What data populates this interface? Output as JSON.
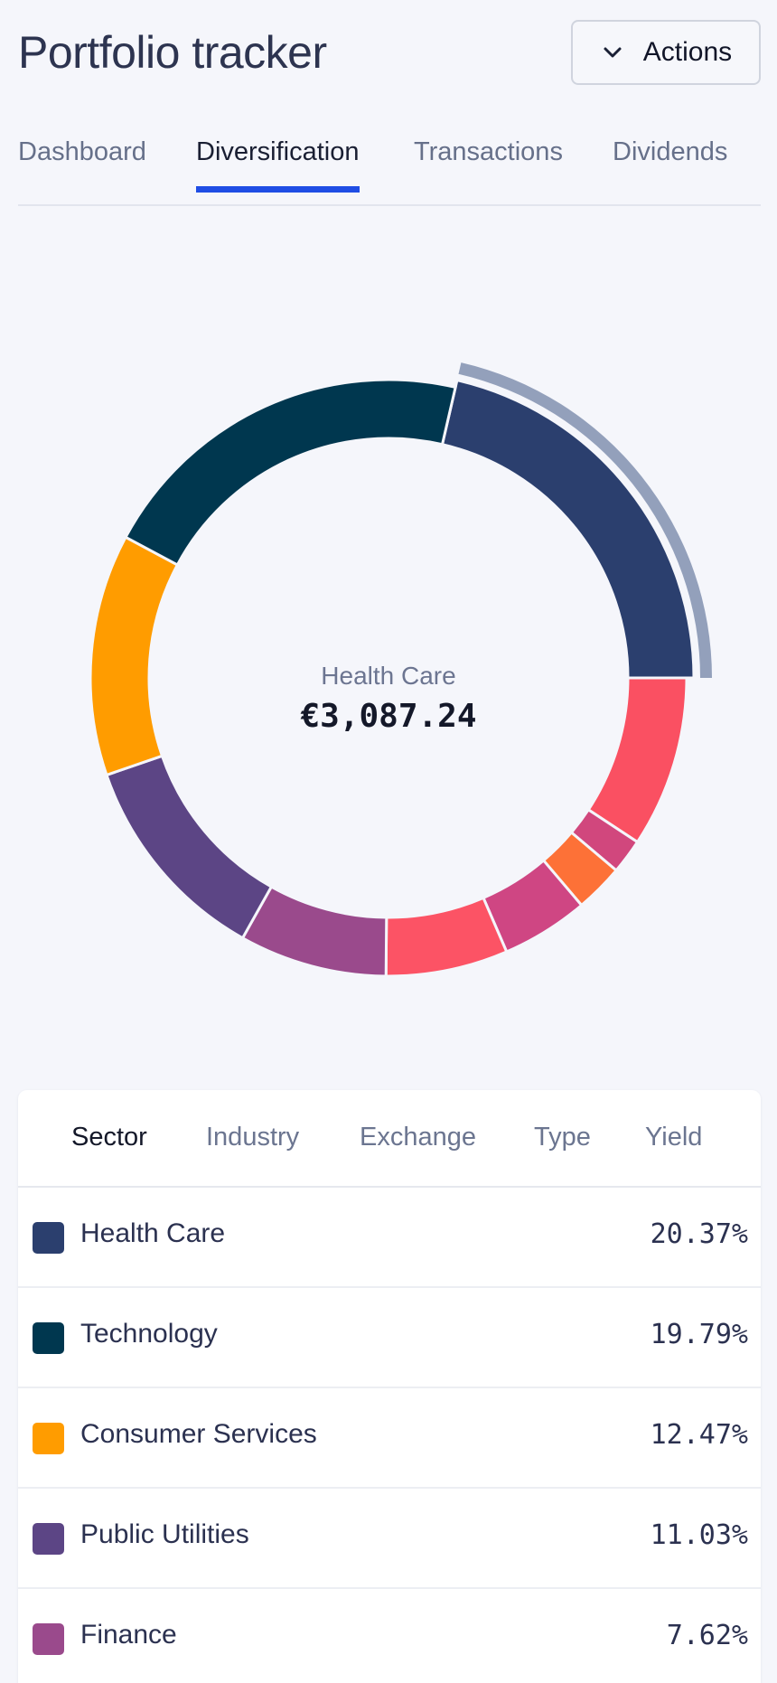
{
  "header": {
    "title": "Portfolio tracker",
    "actions_label": "Actions"
  },
  "tabs": [
    {
      "label": "Dashboard"
    },
    {
      "label": "Diversification"
    },
    {
      "label": "Transactions"
    },
    {
      "label": "Dividends"
    }
  ],
  "active_tab": "Diversification",
  "chart": {
    "center_label": "Health Care",
    "center_value": "€3,087.24"
  },
  "chart_data": {
    "type": "pie",
    "variant": "donut",
    "highlighted": "Health Care",
    "slices": [
      {
        "name": "Health Care",
        "value": 20.37,
        "color": "#2b3f6e"
      },
      {
        "name": "",
        "value": 8.83,
        "color": "#fa5062"
      },
      {
        "name": "",
        "value": 1.8,
        "color": "#d1477d"
      },
      {
        "name": "",
        "value": 2.5,
        "color": "#fd7137"
      },
      {
        "name": "",
        "value": 4.5,
        "color": "#cf4683"
      },
      {
        "name": "",
        "value": 6.3,
        "color": "#fc5365"
      },
      {
        "name": "Finance",
        "value": 7.62,
        "color": "#9a4a8c"
      },
      {
        "name": "Public Utilities",
        "value": 11.03,
        "color": "#5c4585"
      },
      {
        "name": "Consumer Services",
        "value": 12.47,
        "color": "#ff9c00"
      },
      {
        "name": "Technology",
        "value": 19.79,
        "color": "#00374f"
      }
    ]
  },
  "breakdown": {
    "tabs": [
      {
        "label": "Sector"
      },
      {
        "label": "Industry"
      },
      {
        "label": "Exchange"
      },
      {
        "label": "Type"
      },
      {
        "label": "Yield"
      }
    ],
    "active_tab": "Sector",
    "rows": [
      {
        "label": "Health Care",
        "value": "20.37%",
        "color": "#2b3f6e"
      },
      {
        "label": "Technology",
        "value": "19.79%",
        "color": "#00374f"
      },
      {
        "label": "Consumer Services",
        "value": "12.47%",
        "color": "#ff9c00"
      },
      {
        "label": "Public Utilities",
        "value": "11.03%",
        "color": "#5c4585"
      },
      {
        "label": "Finance",
        "value": "7.62%",
        "color": "#9a4a8c"
      }
    ]
  },
  "colors": {
    "accent": "#1f4de4",
    "highlight_ring": "#93a0bb",
    "background": "#f5f6fb"
  }
}
